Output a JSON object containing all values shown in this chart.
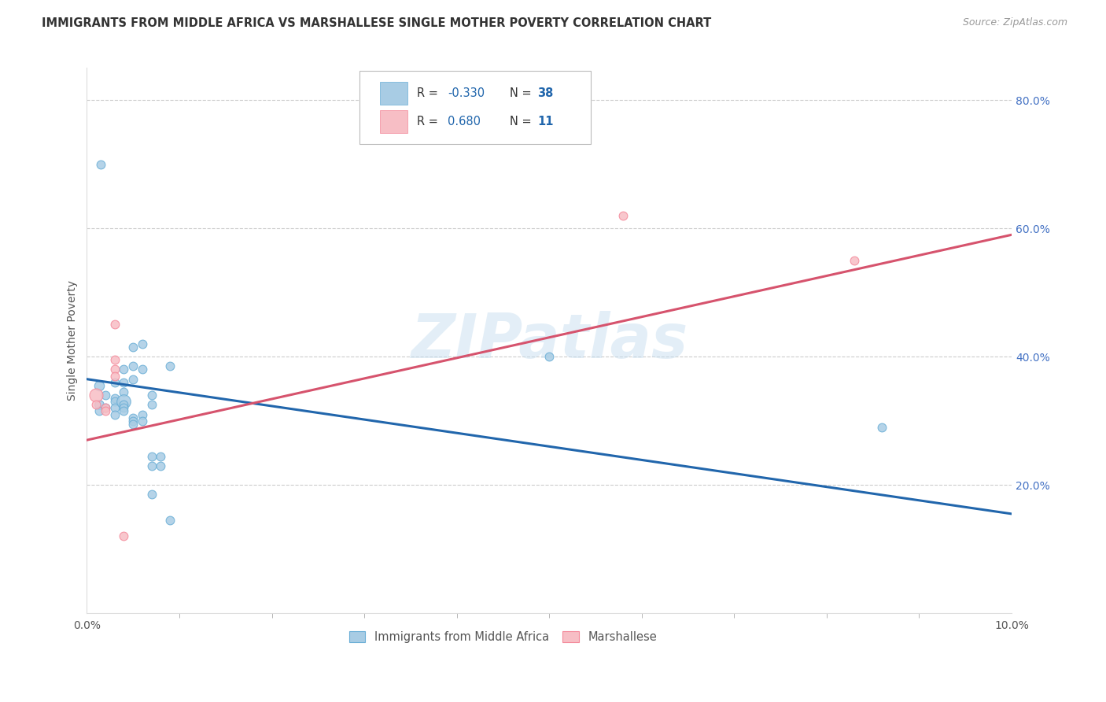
{
  "title": "IMMIGRANTS FROM MIDDLE AFRICA VS MARSHALLESE SINGLE MOTHER POVERTY CORRELATION CHART",
  "source": "Source: ZipAtlas.com",
  "ylabel": "Single Mother Poverty",
  "ylabel_right_ticks": [
    "80.0%",
    "60.0%",
    "40.0%",
    "20.0%"
  ],
  "ylabel_right_vals": [
    0.8,
    0.6,
    0.4,
    0.2
  ],
  "watermark": "ZIPatlas",
  "blue_color": "#a8cce4",
  "pink_color": "#f7bec5",
  "blue_edge_color": "#6aaed6",
  "pink_edge_color": "#f4899a",
  "blue_line_color": "#2166ac",
  "pink_line_color": "#d6536d",
  "blue_dots": [
    [
      0.0013,
      0.355
    ],
    [
      0.0013,
      0.325
    ],
    [
      0.0013,
      0.315
    ],
    [
      0.002,
      0.34
    ],
    [
      0.002,
      0.32
    ],
    [
      0.003,
      0.36
    ],
    [
      0.003,
      0.335
    ],
    [
      0.003,
      0.33
    ],
    [
      0.003,
      0.32
    ],
    [
      0.003,
      0.31
    ],
    [
      0.004,
      0.38
    ],
    [
      0.004,
      0.36
    ],
    [
      0.004,
      0.345
    ],
    [
      0.004,
      0.33
    ],
    [
      0.004,
      0.325
    ],
    [
      0.004,
      0.32
    ],
    [
      0.004,
      0.315
    ],
    [
      0.005,
      0.415
    ],
    [
      0.005,
      0.385
    ],
    [
      0.005,
      0.365
    ],
    [
      0.005,
      0.305
    ],
    [
      0.005,
      0.3
    ],
    [
      0.005,
      0.295
    ],
    [
      0.006,
      0.42
    ],
    [
      0.006,
      0.38
    ],
    [
      0.006,
      0.31
    ],
    [
      0.006,
      0.3
    ],
    [
      0.007,
      0.34
    ],
    [
      0.007,
      0.325
    ],
    [
      0.007,
      0.245
    ],
    [
      0.007,
      0.23
    ],
    [
      0.007,
      0.185
    ],
    [
      0.008,
      0.245
    ],
    [
      0.008,
      0.23
    ],
    [
      0.009,
      0.385
    ],
    [
      0.009,
      0.145
    ],
    [
      0.0015,
      0.7
    ],
    [
      0.05,
      0.4
    ],
    [
      0.086,
      0.29
    ]
  ],
  "blue_sizes": [
    80,
    70,
    60,
    60,
    60,
    60,
    60,
    60,
    60,
    60,
    60,
    60,
    60,
    160,
    60,
    60,
    60,
    60,
    60,
    60,
    60,
    60,
    60,
    60,
    60,
    60,
    60,
    60,
    60,
    60,
    60,
    60,
    60,
    60,
    60,
    60,
    60,
    60,
    60
  ],
  "pink_dots": [
    [
      0.001,
      0.34
    ],
    [
      0.001,
      0.325
    ],
    [
      0.002,
      0.32
    ],
    [
      0.002,
      0.315
    ],
    [
      0.003,
      0.45
    ],
    [
      0.003,
      0.395
    ],
    [
      0.003,
      0.38
    ],
    [
      0.003,
      0.37
    ],
    [
      0.004,
      0.12
    ],
    [
      0.058,
      0.62
    ],
    [
      0.083,
      0.55
    ]
  ],
  "pink_sizes": [
    150,
    60,
    60,
    60,
    60,
    60,
    60,
    60,
    60,
    60,
    60
  ],
  "xlim": [
    0.0,
    0.1
  ],
  "ylim": [
    0.0,
    0.85
  ],
  "blue_line_x": [
    0.0,
    0.1
  ],
  "blue_line_y": [
    0.365,
    0.155
  ],
  "pink_line_x": [
    0.0,
    0.1
  ],
  "pink_line_y": [
    0.27,
    0.59
  ]
}
